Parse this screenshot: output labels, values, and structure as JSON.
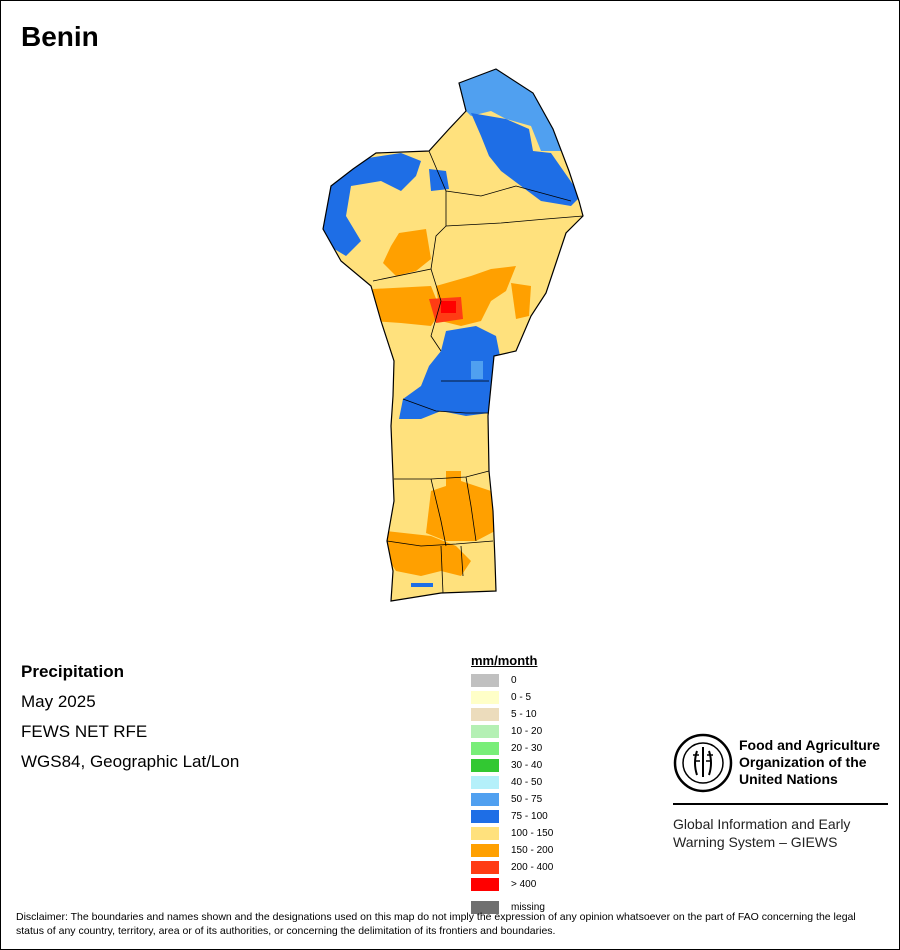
{
  "title": "Benin",
  "info": {
    "variable": "Precipitation",
    "period": "May 2025",
    "source": "FEWS NET RFE",
    "projection": "WGS84, Geographic Lat/Lon"
  },
  "legend": {
    "title": "mm/month",
    "items": [
      {
        "label": "0",
        "color": "#c0c0c0"
      },
      {
        "label": "0 - 5",
        "color": "#ffffc8"
      },
      {
        "label": "5 - 10",
        "color": "#ecdcbc"
      },
      {
        "label": "10 - 20",
        "color": "#b4f0b4"
      },
      {
        "label": "20 - 30",
        "color": "#78ee78"
      },
      {
        "label": "30 - 40",
        "color": "#32c832"
      },
      {
        "label": "40 - 50",
        "color": "#b4f0fa"
      },
      {
        "label": "50 - 75",
        "color": "#50a0f0"
      },
      {
        "label": "75 - 100",
        "color": "#1e6ee6"
      },
      {
        "label": "100 - 150",
        "color": "#ffe17d"
      },
      {
        "label": "150 - 200",
        "color": "#ffa000"
      },
      {
        "label": "200 - 400",
        "color": "#ff3c14"
      },
      {
        "label": "> 400",
        "color": "#ff0000"
      }
    ],
    "missing": {
      "label": "missing",
      "color": "#707070"
    }
  },
  "org": {
    "name_line1": "Food and Agriculture",
    "name_line2": "Organization of the",
    "name_line3": "United Nations",
    "system_line1": "Global Information and Early",
    "system_line2": "Warning System – GIEWS"
  },
  "disclaimer": "Disclaimer: The boundaries and names shown and the designations used on this map do not imply the expression of any opinion whatsoever on the part of FAO concerning the legal status of any country, territory, area or of its authorities, or concerning the delimitation of its frontiers and boundaries."
}
